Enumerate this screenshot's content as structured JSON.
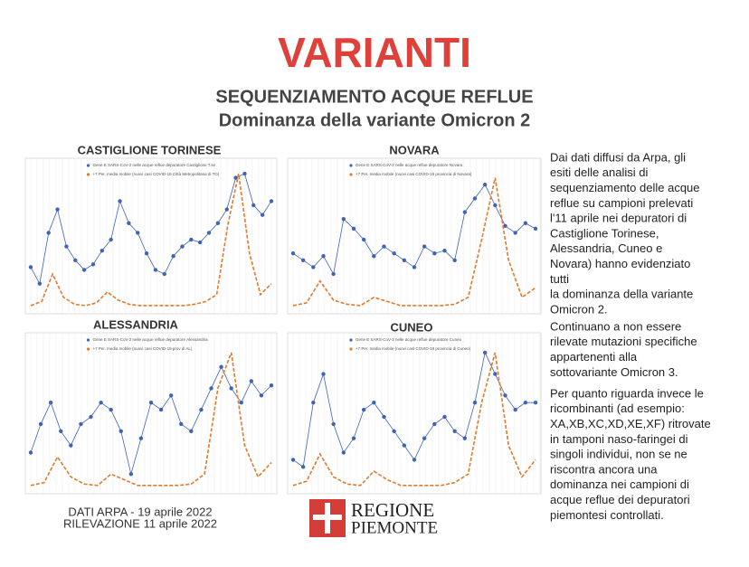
{
  "header": {
    "title": "VARIANTI",
    "subtitle": "SEQUENZIAMENTO ACQUE REFLUE",
    "subtitle2": "Dominanza della variante Omicron 2"
  },
  "chart_data": [
    {
      "type": "line",
      "title": "CASTIGLIONE TORINESE",
      "ylim": [
        0,
        100
      ],
      "series": [
        {
          "name": "Gene E SARS-CoV-2 nelle acque reflue depuratore Castiglione T.se",
          "color": "#3f63b5",
          "values": [
            30,
            18,
            55,
            72,
            45,
            35,
            28,
            32,
            42,
            50,
            78,
            62,
            55,
            40,
            28,
            25,
            38,
            45,
            50,
            48,
            55,
            62,
            72,
            95,
            98,
            75,
            68,
            78
          ]
        },
        {
          "name": "+7 Per. media mobile (nuovi casi COVID-19 Città Metropolitana di TO)",
          "color": "#e07a2e",
          "values": [
            2,
            5,
            25,
            8,
            3,
            2,
            4,
            12,
            6,
            3,
            2,
            2,
            2,
            2,
            2,
            3,
            5,
            10,
            60,
            98,
            40,
            10,
            18
          ]
        }
      ]
    },
    {
      "type": "line",
      "title": "NOVARA",
      "ylim": [
        0,
        100
      ],
      "series": [
        {
          "name": "Gene E SARS-CoV-2 nelle acque reflue depuratore Novara",
          "color": "#3f63b5",
          "values": [
            40,
            35,
            30,
            38,
            25,
            65,
            58,
            50,
            38,
            45,
            40,
            35,
            30,
            45,
            40,
            42,
            35,
            70,
            80,
            90,
            75,
            60,
            55,
            62,
            58
          ]
        },
        {
          "name": "+7 Per. media mobile (nuovi casi COVID-19 provincia di Novara)",
          "color": "#e07a2e",
          "values": [
            2,
            4,
            20,
            6,
            3,
            2,
            8,
            5,
            2,
            2,
            2,
            2,
            3,
            8,
            50,
            95,
            35,
            8,
            15
          ]
        }
      ]
    },
    {
      "type": "line",
      "title": "ALESSANDRIA",
      "ylim": [
        0,
        100
      ],
      "series": [
        {
          "name": "Gene E SARS-CoV-2 nelle acque reflue depuratore Alessandria",
          "color": "#3f63b5",
          "values": [
            25,
            45,
            60,
            40,
            30,
            45,
            50,
            60,
            55,
            40,
            10,
            35,
            60,
            55,
            65,
            45,
            40,
            55,
            70,
            85,
            70,
            60,
            75,
            65,
            72
          ]
        },
        {
          "name": "+7 Per. media mobile (nuovi casi COVID-19 prov di AL)",
          "color": "#e07a2e",
          "values": [
            2,
            4,
            22,
            8,
            3,
            2,
            10,
            6,
            2,
            2,
            2,
            2,
            3,
            10,
            70,
            95,
            30,
            8,
            18
          ]
        }
      ]
    },
    {
      "type": "line",
      "title": "CUNEO",
      "ylim": [
        0,
        100
      ],
      "series": [
        {
          "name": "Gene E SARS-CoV-2 nelle acque reflue depuratore Cuneo",
          "color": "#3f63b5",
          "values": [
            20,
            15,
            60,
            80,
            45,
            25,
            35,
            55,
            60,
            50,
            40,
            30,
            20,
            35,
            45,
            50,
            40,
            35,
            60,
            95,
            80,
            65,
            55,
            60,
            60
          ]
        },
        {
          "name": "+7 Per. media mobile (nuovi casi COVID-19 provincia di Cuneo)",
          "color": "#e07a2e",
          "values": [
            2,
            5,
            24,
            8,
            3,
            2,
            12,
            6,
            2,
            2,
            2,
            2,
            4,
            10,
            60,
            95,
            30,
            8,
            20
          ]
        }
      ]
    }
  ],
  "text": {
    "paragraphs": [
      [
        "Dai dati diffusi da Arpa, gli",
        "esiti delle analisi di",
        "sequenziamento delle acque",
        "reflue su campioni prelevati",
        "l'11 aprile nei depuratori di",
        "Castiglione Torinese,",
        "Alessandria, Cuneo e",
        "Novara) hanno evidenziato",
        "tutti",
        "la dominanza della variante",
        "Omicron 2."
      ],
      [
        "Continuano a non essere",
        "rilevate mutazioni specifiche",
        "appartenenti alla",
        "sottovariante Omicron 3."
      ],
      [
        "Per quanto riguarda invece le",
        "ricombinanti (ad esempio:",
        "XA,XB,XC,XD,XE,XF) ritrovate",
        "in tamponi naso-faringei di",
        "singoli individui, non se ne",
        "riscontra ancora una",
        "dominanza nei campioni di",
        "acque reflue dei depuratori",
        "piemontesi controllati."
      ]
    ]
  },
  "footer": {
    "source": "DATI ARPA - 19 aprile 2022",
    "date": "RILEVAZIONE 11 aprile 2022",
    "logo_line1": "REGIONE",
    "logo_line2": "PIEMONTE"
  }
}
